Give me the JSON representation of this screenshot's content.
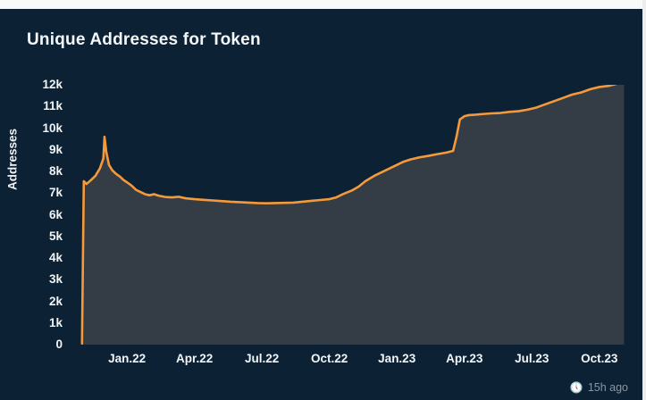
{
  "title": "Unique Addresses for Token",
  "footer": {
    "updated": "15h ago"
  },
  "colors": {
    "background": "#0c2133",
    "area_fill": "#343c46",
    "line": "#f59a3b",
    "label_text": "#f2f5f8",
    "muted_text": "#8b96a2"
  },
  "chart_data": {
    "type": "area",
    "title": "Unique Addresses for Token",
    "xlabel": "",
    "ylabel": "Addresses",
    "ylim": [
      0,
      12000
    ],
    "x_domain": [
      -0.15,
      24.4
    ],
    "grid": false,
    "legend": "none",
    "y_ticks": [
      {
        "value": 0,
        "label": "0"
      },
      {
        "value": 1000,
        "label": "1k"
      },
      {
        "value": 2000,
        "label": "2k"
      },
      {
        "value": 3000,
        "label": "3k"
      },
      {
        "value": 4000,
        "label": "4k"
      },
      {
        "value": 5000,
        "label": "5k"
      },
      {
        "value": 6000,
        "label": "6k"
      },
      {
        "value": 7000,
        "label": "7k"
      },
      {
        "value": 8000,
        "label": "8k"
      },
      {
        "value": 9000,
        "label": "9k"
      },
      {
        "value": 10000,
        "label": "10k"
      },
      {
        "value": 11000,
        "label": "11k"
      },
      {
        "value": 12000,
        "label": "12k"
      }
    ],
    "x_ticks": [
      {
        "t": 2,
        "label": "Jan.22"
      },
      {
        "t": 5,
        "label": "Apr.22"
      },
      {
        "t": 8,
        "label": "Jul.22"
      },
      {
        "t": 11,
        "label": "Oct.22"
      },
      {
        "t": 14,
        "label": "Jan.23"
      },
      {
        "t": 17,
        "label": "Apr.23"
      },
      {
        "t": 20,
        "label": "Jul.23"
      },
      {
        "t": 23,
        "label": "Oct.23"
      }
    ],
    "series": [
      {
        "name": "Unique Addresses",
        "points": [
          [
            0.0,
            50
          ],
          [
            0.08,
            7550
          ],
          [
            0.2,
            7420
          ],
          [
            0.4,
            7600
          ],
          [
            0.6,
            7800
          ],
          [
            0.8,
            8150
          ],
          [
            0.95,
            8600
          ],
          [
            1.0,
            9600
          ],
          [
            1.08,
            8900
          ],
          [
            1.2,
            8300
          ],
          [
            1.35,
            8050
          ],
          [
            1.5,
            7900
          ],
          [
            1.7,
            7750
          ],
          [
            1.85,
            7600
          ],
          [
            2.0,
            7500
          ],
          [
            2.2,
            7350
          ],
          [
            2.4,
            7150
          ],
          [
            2.6,
            7050
          ],
          [
            2.8,
            6950
          ],
          [
            3.0,
            6900
          ],
          [
            3.2,
            6950
          ],
          [
            3.4,
            6880
          ],
          [
            3.7,
            6820
          ],
          [
            4.0,
            6800
          ],
          [
            4.3,
            6830
          ],
          [
            4.6,
            6760
          ],
          [
            5.0,
            6720
          ],
          [
            5.4,
            6690
          ],
          [
            5.8,
            6660
          ],
          [
            6.2,
            6630
          ],
          [
            6.6,
            6600
          ],
          [
            7.0,
            6580
          ],
          [
            7.4,
            6560
          ],
          [
            7.8,
            6540
          ],
          [
            8.2,
            6530
          ],
          [
            8.6,
            6540
          ],
          [
            9.0,
            6550
          ],
          [
            9.4,
            6560
          ],
          [
            9.8,
            6600
          ],
          [
            10.2,
            6640
          ],
          [
            10.6,
            6680
          ],
          [
            11.0,
            6720
          ],
          [
            11.3,
            6800
          ],
          [
            11.6,
            6950
          ],
          [
            12.0,
            7120
          ],
          [
            12.3,
            7300
          ],
          [
            12.6,
            7550
          ],
          [
            13.0,
            7800
          ],
          [
            13.3,
            7950
          ],
          [
            13.6,
            8100
          ],
          [
            14.0,
            8300
          ],
          [
            14.3,
            8450
          ],
          [
            14.6,
            8550
          ],
          [
            15.0,
            8650
          ],
          [
            15.4,
            8720
          ],
          [
            15.8,
            8800
          ],
          [
            16.2,
            8870
          ],
          [
            16.5,
            8950
          ],
          [
            16.65,
            9600
          ],
          [
            16.8,
            10400
          ],
          [
            17.0,
            10550
          ],
          [
            17.2,
            10600
          ],
          [
            17.5,
            10620
          ],
          [
            17.8,
            10650
          ],
          [
            18.2,
            10680
          ],
          [
            18.6,
            10700
          ],
          [
            19.0,
            10750
          ],
          [
            19.4,
            10780
          ],
          [
            19.8,
            10850
          ],
          [
            20.2,
            10950
          ],
          [
            20.6,
            11100
          ],
          [
            21.0,
            11250
          ],
          [
            21.4,
            11400
          ],
          [
            21.8,
            11550
          ],
          [
            22.2,
            11650
          ],
          [
            22.6,
            11800
          ],
          [
            23.0,
            11900
          ],
          [
            23.4,
            11950
          ],
          [
            23.8,
            12050
          ],
          [
            24.1,
            12100
          ]
        ]
      }
    ]
  }
}
